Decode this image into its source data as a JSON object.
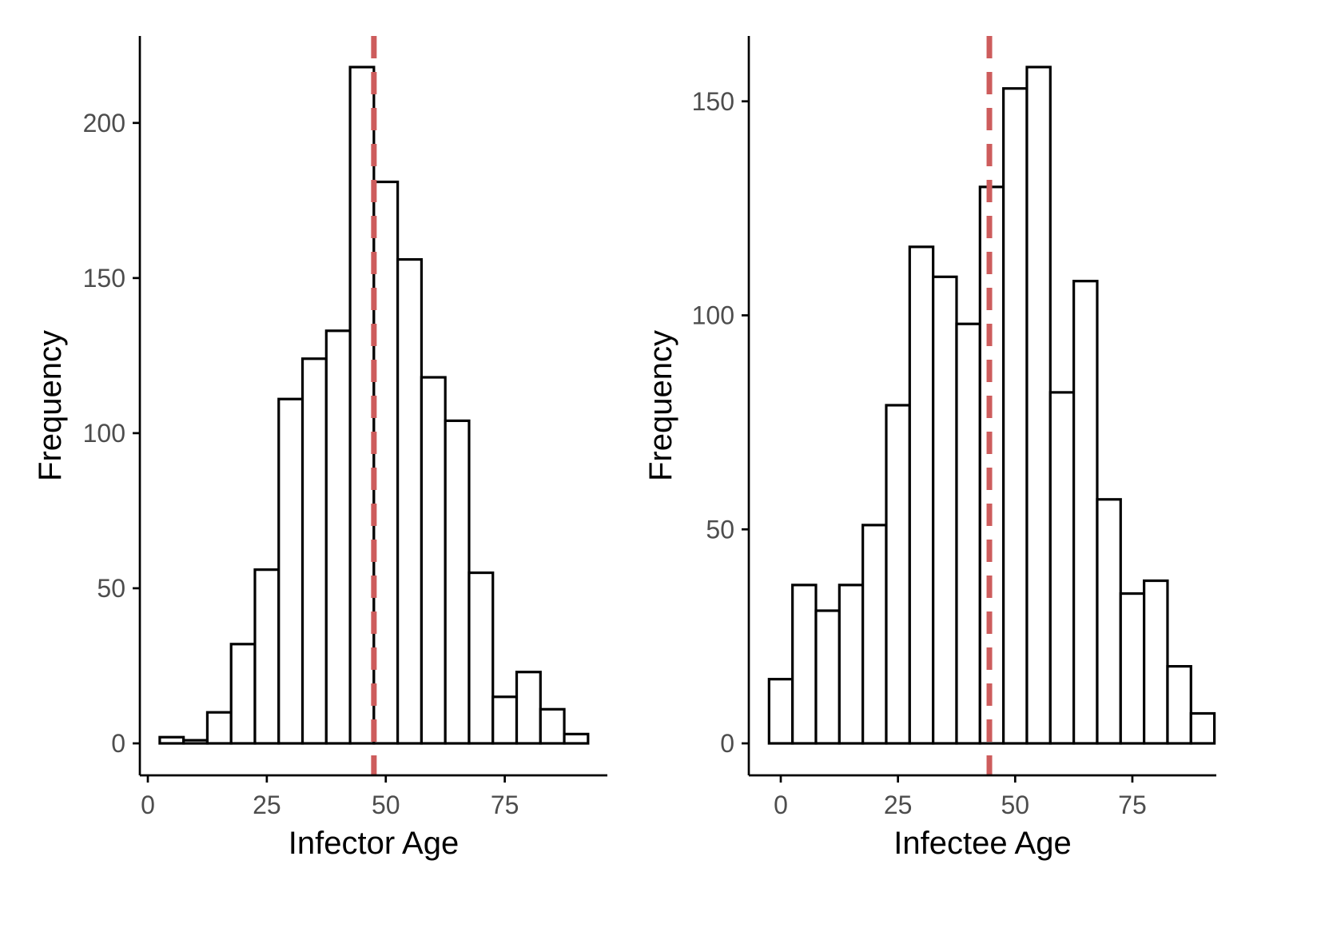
{
  "chart_data": [
    {
      "type": "bar",
      "xlabel": "Infector Age",
      "ylabel": "Frequency",
      "xlim": [
        0,
        95
      ],
      "ylim": [
        0,
        225
      ],
      "x_ticks": [
        0,
        25,
        50,
        75
      ],
      "y_ticks": [
        0,
        50,
        100,
        150,
        200
      ],
      "bin_width": 5,
      "bins": [
        {
          "start": 2.5,
          "end": 7.5,
          "count": 2
        },
        {
          "start": 7.5,
          "end": 12.5,
          "count": 1
        },
        {
          "start": 12.5,
          "end": 17.5,
          "count": 10
        },
        {
          "start": 17.5,
          "end": 22.5,
          "count": 32
        },
        {
          "start": 22.5,
          "end": 27.5,
          "count": 56
        },
        {
          "start": 27.5,
          "end": 32.5,
          "count": 111
        },
        {
          "start": 32.5,
          "end": 37.5,
          "count": 124
        },
        {
          "start": 37.5,
          "end": 42.5,
          "count": 133
        },
        {
          "start": 42.5,
          "end": 47.5,
          "count": 218
        },
        {
          "start": 47.5,
          "end": 52.5,
          "count": 181
        },
        {
          "start": 52.5,
          "end": 57.5,
          "count": 156
        },
        {
          "start": 57.5,
          "end": 62.5,
          "count": 118
        },
        {
          "start": 62.5,
          "end": 67.5,
          "count": 104
        },
        {
          "start": 67.5,
          "end": 72.5,
          "count": 55
        },
        {
          "start": 72.5,
          "end": 77.5,
          "count": 15
        },
        {
          "start": 77.5,
          "end": 82.5,
          "count": 23
        },
        {
          "start": 82.5,
          "end": 87.5,
          "count": 11
        },
        {
          "start": 87.5,
          "end": 92.5,
          "count": 3
        }
      ],
      "mean_line": {
        "x": 47.5,
        "color": "#cd5c5c",
        "style": "dashed"
      },
      "grid": false
    },
    {
      "type": "bar",
      "xlabel": "Infectee Age",
      "ylabel": "Frequency",
      "xlim": [
        -3,
        95
      ],
      "ylim": [
        0,
        160
      ],
      "x_ticks": [
        0,
        25,
        50,
        75
      ],
      "y_ticks": [
        0,
        50,
        100,
        150
      ],
      "bin_width": 5,
      "bins": [
        {
          "start": -2.5,
          "end": 2.5,
          "count": 15
        },
        {
          "start": 2.5,
          "end": 7.5,
          "count": 37
        },
        {
          "start": 7.5,
          "end": 12.5,
          "count": 31
        },
        {
          "start": 12.5,
          "end": 17.5,
          "count": 37
        },
        {
          "start": 17.5,
          "end": 22.5,
          "count": 51
        },
        {
          "start": 22.5,
          "end": 27.5,
          "count": 79
        },
        {
          "start": 27.5,
          "end": 32.5,
          "count": 116
        },
        {
          "start": 32.5,
          "end": 37.5,
          "count": 109
        },
        {
          "start": 37.5,
          "end": 42.5,
          "count": 98
        },
        {
          "start": 42.5,
          "end": 47.5,
          "count": 130
        },
        {
          "start": 47.5,
          "end": 52.5,
          "count": 153
        },
        {
          "start": 52.5,
          "end": 57.5,
          "count": 158
        },
        {
          "start": 57.5,
          "end": 62.5,
          "count": 82
        },
        {
          "start": 62.5,
          "end": 67.5,
          "count": 108
        },
        {
          "start": 67.5,
          "end": 72.5,
          "count": 57
        },
        {
          "start": 72.5,
          "end": 77.5,
          "count": 35
        },
        {
          "start": 77.5,
          "end": 82.5,
          "count": 38
        },
        {
          "start": 82.5,
          "end": 87.5,
          "count": 18
        },
        {
          "start": 87.5,
          "end": 92.5,
          "count": 7
        }
      ],
      "mean_line": {
        "x": 44.5,
        "color": "#cd5c5c",
        "style": "dashed"
      },
      "grid": false
    }
  ]
}
